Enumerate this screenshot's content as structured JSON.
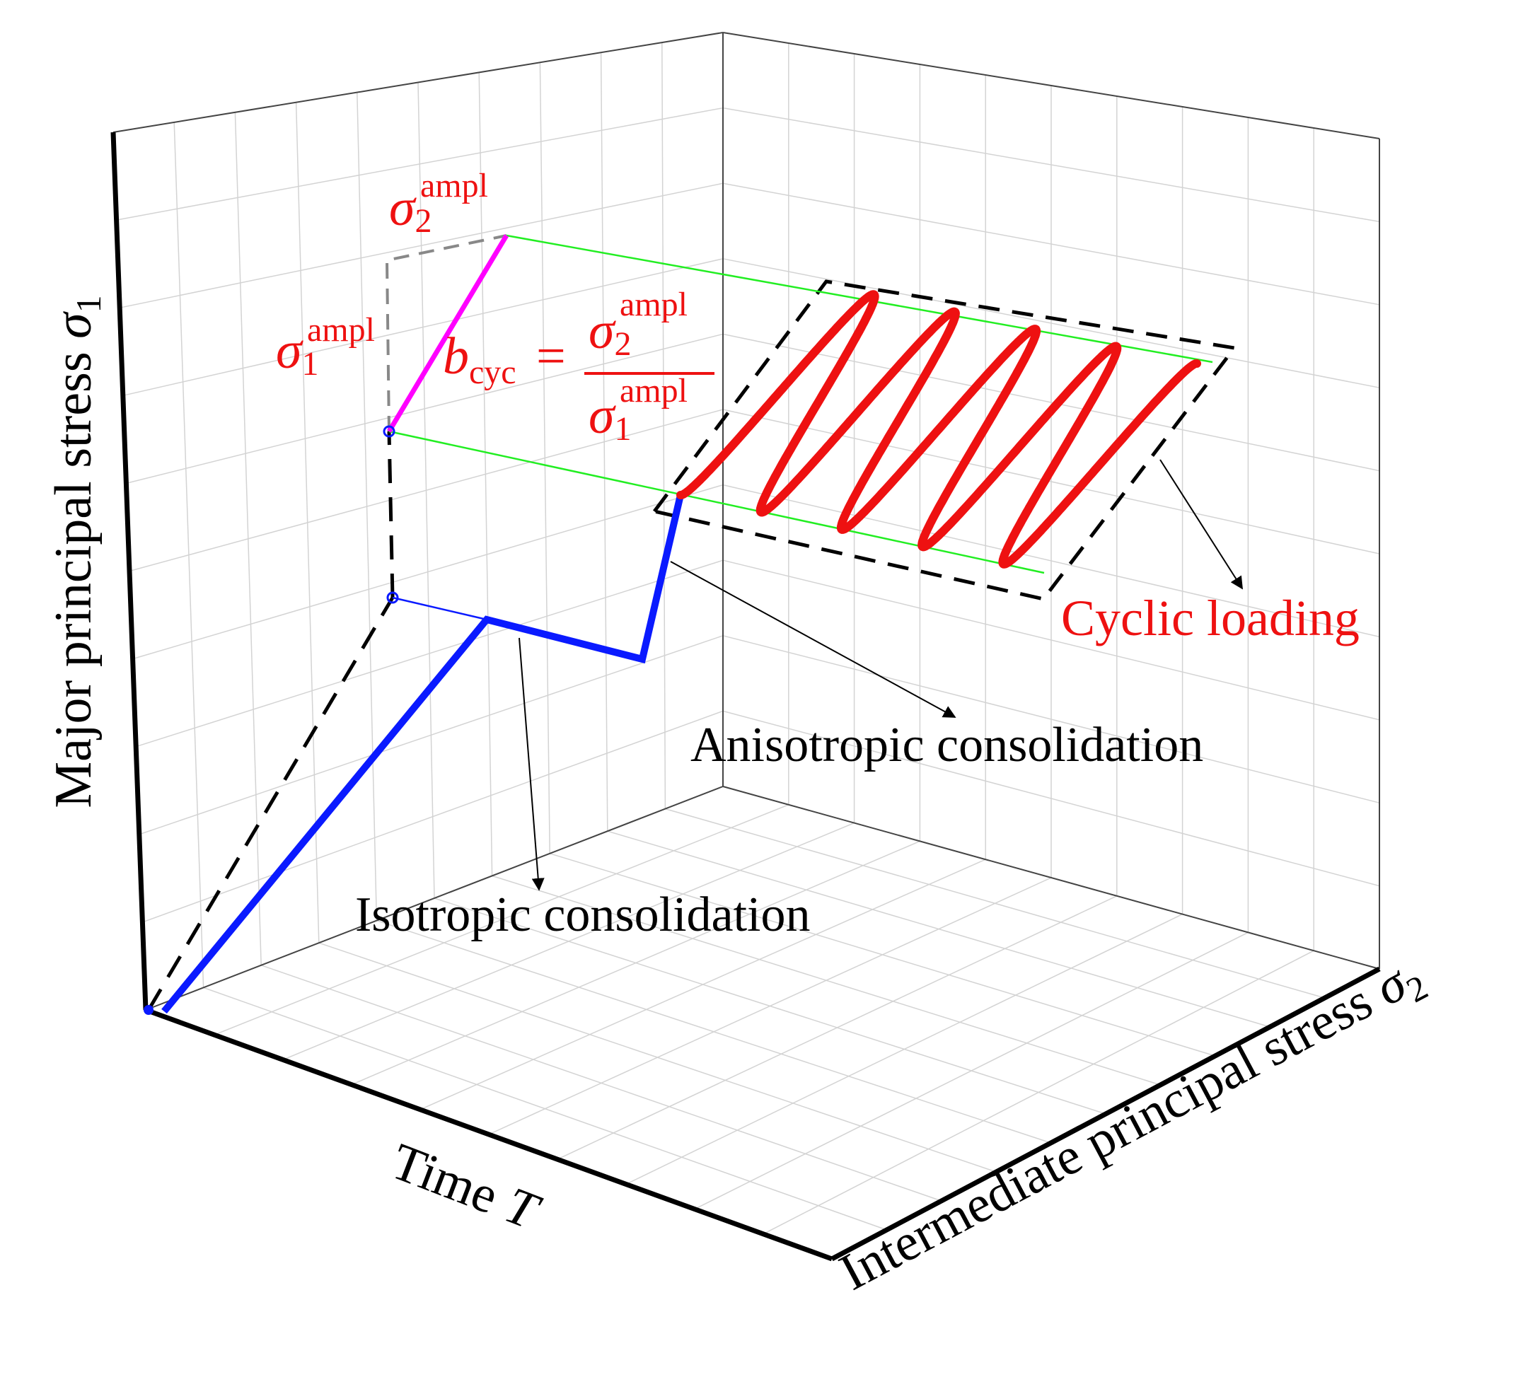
{
  "axes": {
    "vertical_label_text": "Major principal stress ",
    "vertical_label_symbol": "σ",
    "vertical_label_sub": "1",
    "time_label_text": "Time ",
    "time_label_symbol": "T",
    "intermediate_label_text": "Intermediate principal stress ",
    "intermediate_label_symbol": "σ",
    "intermediate_label_sub": "2"
  },
  "annotations": {
    "sigma2_ampl": {
      "symbol": "σ",
      "sub": "2",
      "sup": "ampl"
    },
    "sigma1_ampl": {
      "symbol": "σ",
      "sub": "1",
      "sup": "ampl"
    },
    "b_cyc": {
      "symbol": "b",
      "sub": "cyc",
      "equals": "=",
      "num_symbol": "σ",
      "num_sub": "2",
      "num_sup": "ampl",
      "den_symbol": "σ",
      "den_sub": "1",
      "den_sup": "ampl"
    },
    "cyclic_loading": "Cyclic loading",
    "anisotropic_consolidation": "Anisotropic consolidation",
    "isotropic_consolidation": "Isotropic consolidation"
  },
  "colors": {
    "axis": "#000000",
    "grid": "#d3d3d3",
    "stress_path": "#0a1aff",
    "cyclic_path": "#ee1111",
    "amplitude_line": "#ff00ff",
    "guide_lines": "#22ee22",
    "dashed_box": "#000000"
  },
  "cyclic_loading": {
    "cycles": 4.5
  }
}
